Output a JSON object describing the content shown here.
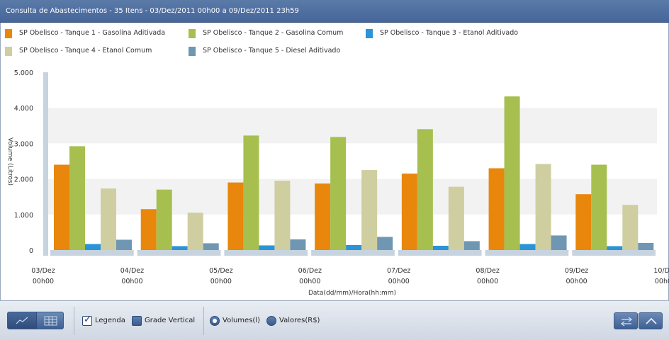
{
  "window": {
    "title": "Consulta de Abastecimentos  -  35 Itens - 03/Dez/2011 00h00 a 09/Dez/2011 23h59"
  },
  "legend": {
    "items": [
      {
        "label": "SP Obelisco - Tanque 1 - Gasolina Aditivada",
        "color": "#e8870c"
      },
      {
        "label": "SP Obelisco - Tanque 2 - Gasolina Comum",
        "color": "#a6bf4f"
      },
      {
        "label": "SP Obelisco - Tanque 3 - Etanol Aditivado",
        "color": "#2a94d6"
      },
      {
        "label": "SP Obelisco - Tanque 4 - Etanol Comum",
        "color": "#cfcea0"
      },
      {
        "label": "SP Obelisco - Tanque 5 - Diesel Aditivado",
        "color": "#6f97b3"
      }
    ]
  },
  "chart_data": {
    "type": "bar",
    "xlabel": "Data(dd/mm)/Hora(hh:mm)",
    "ylabel": "Volume (Litros)",
    "ylim": [
      0,
      5000
    ],
    "y_ticks": [
      "0",
      "1.000",
      "2.000",
      "3.000",
      "4.000",
      "5.000"
    ],
    "x_ticks": [
      {
        "date": "03/Dez",
        "time": "00h00"
      },
      {
        "date": "04/Dez",
        "time": "00h00"
      },
      {
        "date": "05/Dez",
        "time": "00h00"
      },
      {
        "date": "06/Dez",
        "time": "00h00"
      },
      {
        "date": "07/Dez",
        "time": "00h00"
      },
      {
        "date": "08/Dez",
        "time": "00h00"
      },
      {
        "date": "09/Dez",
        "time": "00h00"
      },
      {
        "date": "10/Dez",
        "time": "00h00"
      }
    ],
    "categories": [
      "03/Dez",
      "04/Dez",
      "05/Dez",
      "06/Dez",
      "07/Dez",
      "08/Dez",
      "09/Dez"
    ],
    "series": [
      {
        "name": "SP Obelisco - Tanque 1 - Gasolina Aditivada",
        "color": "#e8870c",
        "values": [
          2400,
          1150,
          1900,
          1870,
          2150,
          2300,
          1570
        ]
      },
      {
        "name": "SP Obelisco - Tanque 2 - Gasolina Comum",
        "color": "#a6bf4f",
        "values": [
          2920,
          1700,
          3220,
          3180,
          3400,
          4320,
          2400
        ]
      },
      {
        "name": "SP Obelisco - Tanque 3 - Etanol Aditivado",
        "color": "#2a94d6",
        "values": [
          170,
          110,
          130,
          140,
          120,
          170,
          110
        ]
      },
      {
        "name": "SP Obelisco - Tanque 4 - Etanol Comum",
        "color": "#cfcea0",
        "values": [
          1730,
          1050,
          1950,
          2250,
          1780,
          2420,
          1270
        ]
      },
      {
        "name": "SP Obelisco - Tanque 5 - Diesel Aditivado",
        "color": "#6f97b3",
        "values": [
          290,
          190,
          300,
          370,
          250,
          410,
          200
        ]
      }
    ],
    "grid": "horizontal bands",
    "legend_position": "top"
  },
  "toolbar": {
    "legend_label": "Legenda",
    "legend_checked": true,
    "grid_label": "Grade Vertical",
    "grid_checked": false,
    "volumes_label": "Volumes(l)",
    "values_label": "Valores(R$)",
    "selected_mode": "volumes",
    "chart_view_icon": "line-chart-icon",
    "table_view_icon": "table-icon",
    "swap_icon": "swap-icon",
    "collapse_icon": "chevron-up-icon"
  }
}
